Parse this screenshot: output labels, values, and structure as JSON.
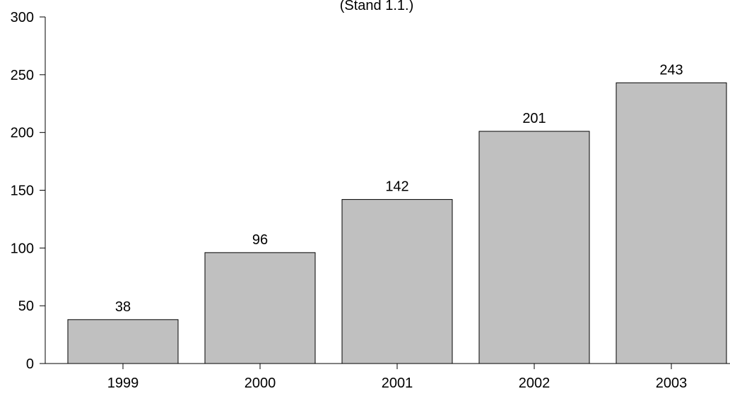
{
  "chart_data": {
    "type": "bar",
    "subtitle": "(Stand 1.1.)",
    "categories": [
      "1999",
      "2000",
      "2001",
      "2002",
      "2003"
    ],
    "values": [
      38,
      96,
      142,
      201,
      243
    ],
    "data_labels": [
      "38",
      "96",
      "142",
      "201",
      "243"
    ],
    "y_ticks": [
      0,
      50,
      100,
      150,
      200,
      250,
      300
    ],
    "ylim": [
      0,
      300
    ],
    "xlabel": "",
    "ylabel": "",
    "grid": false,
    "bar_color": "#c0c0c0",
    "edge_color": "#000000"
  }
}
